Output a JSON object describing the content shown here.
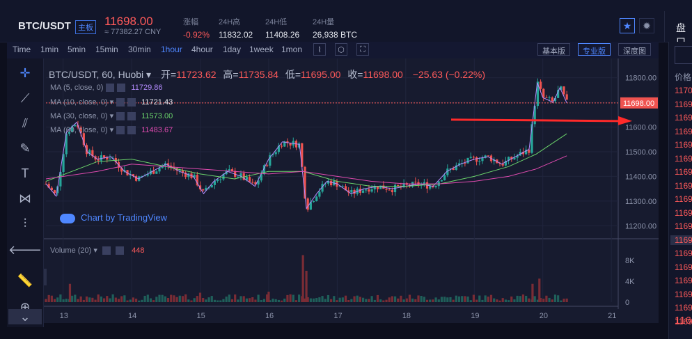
{
  "header": {
    "pair": "BTC/USDT",
    "board": "主板",
    "price": "11698.00",
    "cny": "≈ 77382.27 CNY",
    "stats": [
      {
        "label": "涨幅",
        "value": "-0.92%",
        "color": "#ff5a5a"
      },
      {
        "label": "24H高",
        "value": "11832.02",
        "color": "#dfe2ea"
      },
      {
        "label": "24H低",
        "value": "11408.26",
        "color": "#dfe2ea"
      },
      {
        "label": "24H量",
        "value": "26,938 BTC",
        "color": "#dfe2ea"
      }
    ],
    "side_title": "盘口"
  },
  "toolbar": {
    "timeframes": [
      "Time",
      "1min",
      "5min",
      "15min",
      "30min",
      "1hour",
      "4hour",
      "1day",
      "1week",
      "1mon"
    ],
    "active": "1hour",
    "views": [
      "基本版",
      "专业版",
      "深度图"
    ],
    "active_view": "专业版"
  },
  "legend": {
    "symbol": "BTC/USDT, 60, Huobi",
    "open_label": "开=",
    "open": "11723.62",
    "high_label": "高=",
    "high": "11735.84",
    "low_label": "低=",
    "low": "11695.00",
    "close_label": "收=",
    "close": "11698.00",
    "change": "−25.63 (−0.22%)"
  },
  "ma": [
    {
      "label": "MA (5, close, 0)",
      "value": "11729.86",
      "color": "#b48cff"
    },
    {
      "label": "MA (10, close, 0)",
      "value": "11721.43",
      "color": "#e6e8ef"
    },
    {
      "label": "MA (30, close, 0)",
      "value": "11573.00",
      "color": "#6bd46b"
    },
    {
      "label": "MA (60, close, 0)",
      "value": "11483.67",
      "color": "#e04bb0"
    }
  ],
  "volume_legend": {
    "label": "Volume (20)",
    "value": "448"
  },
  "watermark": "Chart by TradingView",
  "chart_data": {
    "type": "line",
    "price_axis": [
      "11800.00",
      "11700.00",
      "11600.00",
      "11500.00",
      "11400.00",
      "11300.00",
      "11200.00"
    ],
    "price_values": [
      11800,
      11700,
      11600,
      11500,
      11400,
      11300,
      11200
    ],
    "current_price_label": "11698.00",
    "current_price": 11698,
    "volume_axis": [
      "8K",
      "4K",
      "0"
    ],
    "volume_values": [
      8000,
      4000,
      0
    ],
    "x_ticks": [
      "13",
      "14",
      "15",
      "16",
      "17",
      "18",
      "19",
      "20",
      "21"
    ],
    "x_positions": [
      13,
      14,
      15,
      16,
      17,
      18,
      19,
      20,
      21
    ],
    "xlim": [
      12.75,
      21.1
    ],
    "ylim": [
      11150,
      11850
    ],
    "vol_ylim": [
      0,
      10000
    ],
    "close_series": [
      {
        "x": 12.75,
        "y": 11370
      },
      {
        "x": 12.9,
        "y": 11320
      },
      {
        "x": 13.05,
        "y": 11580
      },
      {
        "x": 13.2,
        "y": 11620
      },
      {
        "x": 13.35,
        "y": 11500
      },
      {
        "x": 13.5,
        "y": 11470
      },
      {
        "x": 13.7,
        "y": 11480
      },
      {
        "x": 13.9,
        "y": 11420
      },
      {
        "x": 14.1,
        "y": 11390
      },
      {
        "x": 14.3,
        "y": 11420
      },
      {
        "x": 14.5,
        "y": 11450
      },
      {
        "x": 14.7,
        "y": 11420
      },
      {
        "x": 14.9,
        "y": 11400
      },
      {
        "x": 15.05,
        "y": 11330
      },
      {
        "x": 15.2,
        "y": 11380
      },
      {
        "x": 15.4,
        "y": 11420
      },
      {
        "x": 15.6,
        "y": 11400
      },
      {
        "x": 15.8,
        "y": 11360
      },
      {
        "x": 16.0,
        "y": 11470
      },
      {
        "x": 16.2,
        "y": 11540
      },
      {
        "x": 16.45,
        "y": 11530
      },
      {
        "x": 16.55,
        "y": 11270
      },
      {
        "x": 16.7,
        "y": 11330
      },
      {
        "x": 16.85,
        "y": 11380
      },
      {
        "x": 17.0,
        "y": 11370
      },
      {
        "x": 17.2,
        "y": 11330
      },
      {
        "x": 17.4,
        "y": 11350
      },
      {
        "x": 17.6,
        "y": 11360
      },
      {
        "x": 17.8,
        "y": 11350
      },
      {
        "x": 18.0,
        "y": 11360
      },
      {
        "x": 18.2,
        "y": 11370
      },
      {
        "x": 18.4,
        "y": 11360
      },
      {
        "x": 18.6,
        "y": 11420
      },
      {
        "x": 18.8,
        "y": 11450
      },
      {
        "x": 19.0,
        "y": 11470
      },
      {
        "x": 19.2,
        "y": 11480
      },
      {
        "x": 19.4,
        "y": 11450
      },
      {
        "x": 19.6,
        "y": 11480
      },
      {
        "x": 19.8,
        "y": 11510
      },
      {
        "x": 19.92,
        "y": 11780
      },
      {
        "x": 20.0,
        "y": 11720
      },
      {
        "x": 20.15,
        "y": 11700
      },
      {
        "x": 20.25,
        "y": 11760
      },
      {
        "x": 20.35,
        "y": 11698
      }
    ],
    "ma30": [
      {
        "x": 12.75,
        "y": 11380
      },
      {
        "x": 13.5,
        "y": 11460
      },
      {
        "x": 14.0,
        "y": 11470
      },
      {
        "x": 14.5,
        "y": 11440
      },
      {
        "x": 15.0,
        "y": 11410
      },
      {
        "x": 15.5,
        "y": 11390
      },
      {
        "x": 16.0,
        "y": 11420
      },
      {
        "x": 16.5,
        "y": 11420
      },
      {
        "x": 17.0,
        "y": 11380
      },
      {
        "x": 17.5,
        "y": 11360
      },
      {
        "x": 18.0,
        "y": 11360
      },
      {
        "x": 18.5,
        "y": 11370
      },
      {
        "x": 19.0,
        "y": 11400
      },
      {
        "x": 19.5,
        "y": 11440
      },
      {
        "x": 19.9,
        "y": 11490
      },
      {
        "x": 20.35,
        "y": 11573
      }
    ],
    "ma60": [
      {
        "x": 12.75,
        "y": 11390
      },
      {
        "x": 13.5,
        "y": 11420
      },
      {
        "x": 14.0,
        "y": 11450
      },
      {
        "x": 14.5,
        "y": 11440
      },
      {
        "x": 15.0,
        "y": 11430
      },
      {
        "x": 15.5,
        "y": 11420
      },
      {
        "x": 16.0,
        "y": 11410
      },
      {
        "x": 16.5,
        "y": 11420
      },
      {
        "x": 17.0,
        "y": 11400
      },
      {
        "x": 17.5,
        "y": 11380
      },
      {
        "x": 18.0,
        "y": 11370
      },
      {
        "x": 18.5,
        "y": 11370
      },
      {
        "x": 19.0,
        "y": 11380
      },
      {
        "x": 19.5,
        "y": 11400
      },
      {
        "x": 19.9,
        "y": 11430
      },
      {
        "x": 20.35,
        "y": 11483.67
      }
    ],
    "volume_spikes": [
      {
        "x": 16.5,
        "v": 9000
      },
      {
        "x": 16.55,
        "v": 6000
      },
      {
        "x": 13.1,
        "v": 3500
      },
      {
        "x": 19.85,
        "v": 3500
      },
      {
        "x": 19.95,
        "v": 4500
      },
      {
        "x": 15.0,
        "v": 1800
      },
      {
        "x": 16.0,
        "v": 2000
      }
    ],
    "colors": {
      "up": "#26a69a",
      "down": "#ef5350",
      "ma5": "#b48cff",
      "ma30": "#6bd46b",
      "ma60": "#e04bb0",
      "price_line": "#ff5a5a"
    }
  },
  "side_list": [
    "1170",
    "1169",
    "1169",
    "1169",
    "1169",
    "1169",
    "1169",
    "1169",
    "1169",
    "1169",
    "1169",
    "1169",
    "1169",
    "1169",
    "1169",
    "1169",
    "1169",
    "1169"
  ],
  "side_label": "价格",
  "side_bottom": "116",
  "colors": {
    "accent": "#4f87ff",
    "up": "#26a69a",
    "down": "#ff5a5a"
  }
}
